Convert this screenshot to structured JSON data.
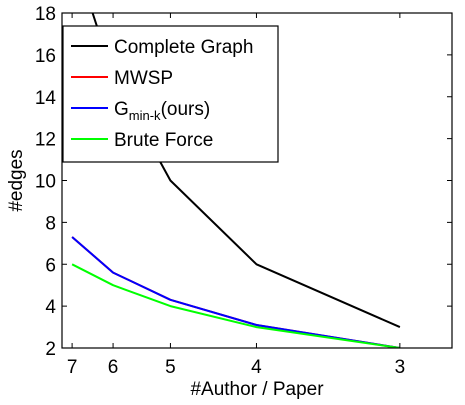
{
  "chart_data": {
    "type": "line",
    "title": "",
    "xlabel": "#Author / Paper",
    "ylabel": "#edges",
    "x_scale": "reciprocal",
    "xticks": [
      3,
      4,
      5,
      6,
      7
    ],
    "yticks": [
      2,
      4,
      6,
      8,
      10,
      12,
      14,
      16,
      18
    ],
    "xlim": [
      7.3,
      2.75
    ],
    "ylim": [
      2,
      18
    ],
    "grid": false,
    "legend_position": "top-left",
    "x": [
      3,
      4,
      5,
      6,
      7
    ],
    "series": [
      {
        "name": "Complete Graph",
        "color": "#000000",
        "values": [
          3,
          6,
          10,
          15,
          21
        ]
      },
      {
        "name": "MWSP",
        "color": "#ff0000",
        "values": [
          2,
          3.1,
          4.3,
          5.6,
          7.3
        ]
      },
      {
        "name": "Gmin-k(ours)",
        "name_main": "G",
        "name_sub": "min-k",
        "name_tail": "(ours)",
        "color": "#0000ff",
        "values": [
          2,
          3.1,
          4.3,
          5.6,
          7.3
        ]
      },
      {
        "name": "Brute Force",
        "color": "#00ff00",
        "values": [
          2,
          3.0,
          4.0,
          5.0,
          6.0
        ]
      }
    ]
  }
}
